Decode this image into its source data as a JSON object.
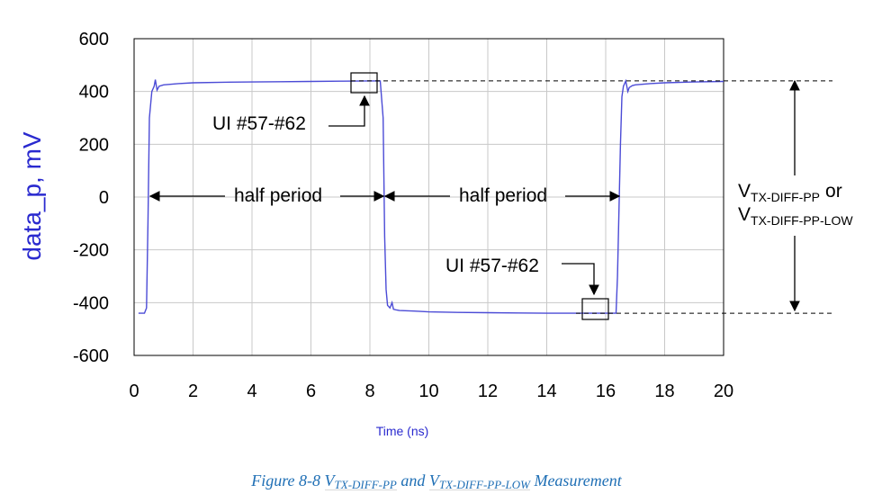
{
  "chart_data": {
    "type": "line",
    "ylabel": "data_p, mV",
    "xlabel": "Time (ns)",
    "xlim": [
      0,
      20
    ],
    "ylim": [
      -600,
      600
    ],
    "xticks": [
      "0",
      "2",
      "4",
      "6",
      "8",
      "10",
      "12",
      "14",
      "16",
      "18",
      "20"
    ],
    "yticks": [
      "600",
      "400",
      "200",
      "0",
      "-200",
      "-400",
      "-600"
    ],
    "grid": true,
    "series": [
      {
        "color": "#4b4bd6",
        "x": [
          0.15,
          0.35,
          0.42,
          0.47,
          0.52,
          0.6,
          0.68,
          0.72,
          0.78,
          0.85,
          1.0,
          1.5,
          2.0,
          3.0,
          4.0,
          5.0,
          6.0,
          7.0,
          8.0,
          8.35,
          8.45,
          8.5,
          8.55,
          8.6,
          8.68,
          8.75,
          8.8,
          8.9,
          9.0,
          9.5,
          10.0,
          11.0,
          12.0,
          13.0,
          14.0,
          15.0,
          16.0,
          16.35,
          16.4,
          16.5,
          16.55,
          16.6,
          16.68,
          16.75,
          16.8,
          16.9,
          17.0,
          17.5,
          18.0,
          19.0,
          20.0
        ],
        "y": [
          -440,
          -440,
          -420,
          -100,
          300,
          400,
          420,
          445,
          405,
          420,
          425,
          430,
          433,
          435,
          436,
          437,
          438,
          439,
          440,
          440,
          300,
          -150,
          -350,
          -410,
          -420,
          -400,
          -425,
          -428,
          -430,
          -432,
          -435,
          -437,
          -438,
          -439,
          -440,
          -440,
          -440,
          -440,
          -300,
          200,
          380,
          420,
          440,
          400,
          415,
          422,
          425,
          430,
          433,
          436,
          438
        ]
      }
    ],
    "annotations": {
      "ui_top": "UI #57-#62",
      "ui_bottom": "UI #57-#62",
      "half_period_1": "half period",
      "half_period_2": "half period",
      "vtx_line1_main": "V",
      "vtx_line1_sub": "TX-DIFF-PP",
      "vtx_line1_tail": "or",
      "vtx_line2_main": "V",
      "vtx_line2_sub": "TX-DIFF-PP-LOW"
    }
  },
  "caption": {
    "prefix": "Figure  8-8 ",
    "v1_main": "V",
    "v1_sub": "TX-DIFF-PP",
    "and": " and ",
    "v2_main": "V",
    "v2_sub": "TX-DIFF-PP-LOW",
    "suffix": " Measurement"
  }
}
